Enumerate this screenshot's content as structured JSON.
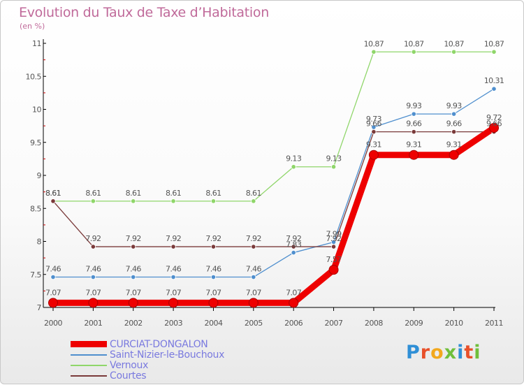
{
  "header": {
    "title": "Evolution du Taux de Taxe d’Habitation",
    "subtitle": "(en %)"
  },
  "logo": {
    "text": "Proxiti",
    "colors": [
      "#2f8fd6",
      "#e8502a",
      "#f2a81d",
      "#6fbf3b",
      "#2f8fd6",
      "#e8502a",
      "#6fbf3b"
    ]
  },
  "colors": {
    "axis": "#000000",
    "grid_tick": "#cc0000",
    "label": "#555555",
    "logo_x": "#f2a81d"
  },
  "chart_data": {
    "type": "line",
    "title": "Evolution du Taux de Taxe d’Habitation",
    "ylabel": "(en %)",
    "xlabel": "",
    "x": [
      "2000",
      "2001",
      "2002",
      "2003",
      "2004",
      "2005",
      "2006",
      "2007",
      "2008",
      "2009",
      "2010",
      "2011"
    ],
    "ylim": [
      7,
      11
    ],
    "yticks": [
      "7",
      "7.5",
      "8",
      "8.5",
      "9",
      "9.5",
      "10",
      "10.5",
      "11"
    ],
    "grid": false,
    "legend_position": "bottom-left",
    "series": [
      {
        "name": "CURCIAT-DONGALON",
        "color": "#ee0000",
        "values": [
          7.07,
          7.07,
          7.07,
          7.07,
          7.07,
          7.07,
          7.07,
          7.57,
          9.31,
          9.31,
          9.31,
          9.72
        ],
        "labels": [
          "7.07",
          "7.07",
          "7.07",
          "7.07",
          "7.07",
          "7.07",
          "7.07",
          "7.57",
          "9.31",
          "9.31",
          "9.31",
          "9.72"
        ]
      },
      {
        "name": "Saint-Nizier-le-Bouchoux",
        "color": "#4f8fce",
        "values": [
          7.46,
          7.46,
          7.46,
          7.46,
          7.46,
          7.46,
          7.83,
          7.99,
          9.73,
          9.93,
          9.93,
          10.31
        ],
        "labels": [
          "7.46",
          "7.46",
          "7.46",
          "7.46",
          "7.46",
          "7.46",
          "7.83",
          "7.99",
          "9.73",
          "9.93",
          "9.93",
          "10.31"
        ]
      },
      {
        "name": "Vernoux",
        "color": "#8fd66a",
        "values": [
          8.61,
          8.61,
          8.61,
          8.61,
          8.61,
          8.61,
          9.13,
          9.13,
          10.87,
          10.87,
          10.87,
          10.87
        ],
        "labels": [
          "8.61",
          "8.61",
          "8.61",
          "8.61",
          "8.61",
          "8.61",
          "9.13",
          "9.13",
          "10.87",
          "10.87",
          "10.87",
          "10.87"
        ]
      },
      {
        "name": "Courtes",
        "color": "#7a3a3a",
        "values": [
          8.61,
          7.92,
          7.92,
          7.92,
          7.92,
          7.92,
          7.92,
          7.92,
          9.66,
          9.66,
          9.66,
          9.66
        ],
        "labels": [
          "8.61",
          "7.92",
          "7.92",
          "7.92",
          "7.92",
          "7.92",
          "7.92",
          "7.92",
          "9.66",
          "9.66",
          "9.66",
          "9.66"
        ]
      }
    ]
  }
}
